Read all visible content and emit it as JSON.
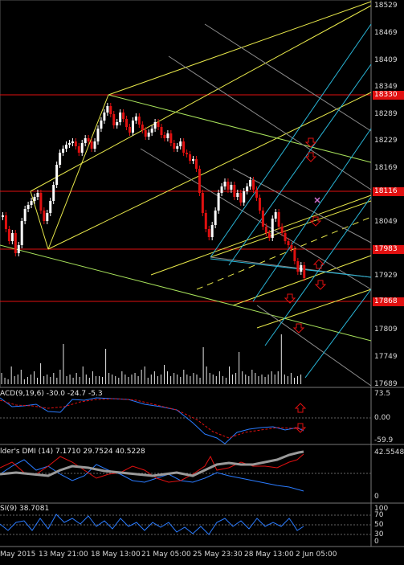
{
  "price_axis": {
    "labels": [
      "18529",
      "18469",
      "18409",
      "18349",
      "18289",
      "18229",
      "18169",
      "18109",
      "18049",
      "17989",
      "17929",
      "17869",
      "17809",
      "17749",
      "17689"
    ],
    "highlighted": [
      {
        "value": "18330",
        "color": "#e01010"
      },
      {
        "value": "18116",
        "color": "#e01010"
      },
      {
        "value": "17983",
        "color": "#e01010"
      },
      {
        "value": "17868",
        "color": "#e01010"
      }
    ]
  },
  "macd": {
    "title": "ACD(9,19,6) -30.0 -24.7 -5.3",
    "axis": [
      "73.5",
      "0.00",
      "-59.9"
    ]
  },
  "dmi": {
    "title": "lder's DMI (14) 7.1710 29.7524 40.5228",
    "axis": [
      "42.5548",
      "0"
    ]
  },
  "rsi": {
    "title": "SI(9) 38.7081",
    "axis": [
      "100",
      "70",
      "50",
      "30",
      "0"
    ]
  },
  "time_axis": [
    "May 2015",
    "13 May 21:00",
    "18 May 13:00",
    "21 May 05:00",
    "25 May 23:30",
    "28 May 13:00",
    "2 Jun 05:00"
  ],
  "colors": {
    "bull": "#ffffff",
    "bear": "#e01010",
    "horizontal": "#e01010",
    "pitchfork_yellow": "#e8e84a",
    "pitchfork_cyan": "#29b6d8",
    "grey_lines": "#8c8c8c",
    "green_line": "#a6e05a"
  },
  "icons": [
    "arrow-up-icon",
    "arrow-down-icon",
    "cross-marker-icon"
  ]
}
